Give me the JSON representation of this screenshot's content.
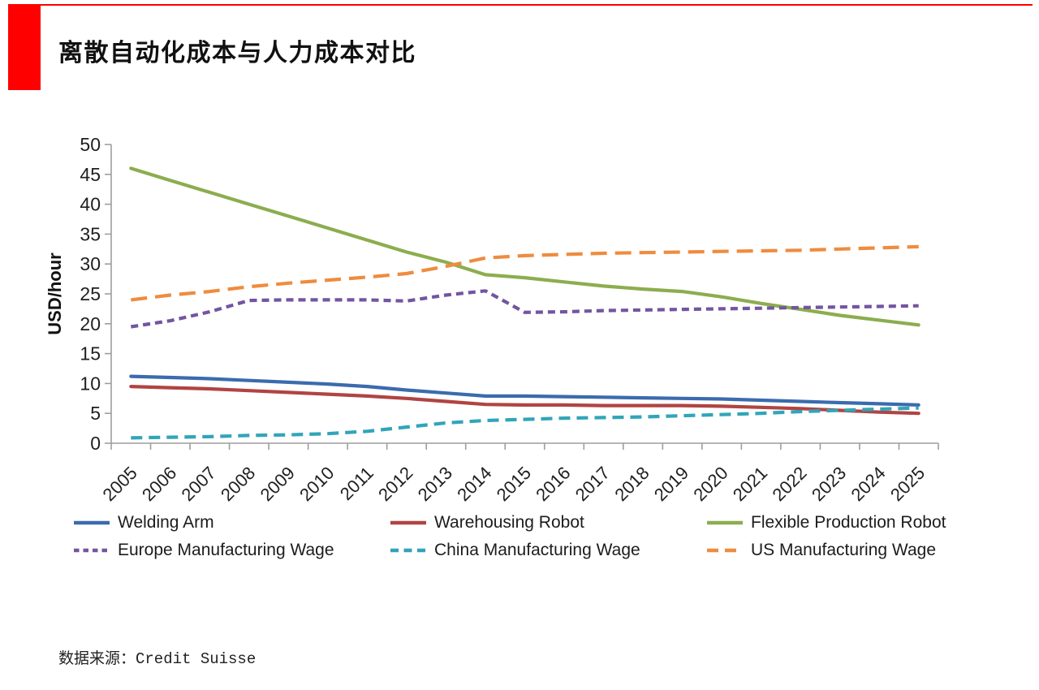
{
  "header": {
    "title": "离散自动化成本与人力成本对比",
    "accent_color": "#FE0000"
  },
  "chart_data": {
    "type": "line",
    "title": "离散自动化成本与人力成本对比",
    "xlabel": "",
    "ylabel": "USD/hour",
    "ylim": [
      0,
      50
    ],
    "ytick_step": 5,
    "grid": false,
    "legend_position": "bottom",
    "axis_color": "#9e9e9e",
    "categories": [
      "2005",
      "2006",
      "2007",
      "2008",
      "2009",
      "2010",
      "2011",
      "2012",
      "2013",
      "2014",
      "2015",
      "2016",
      "2017",
      "2018",
      "2019",
      "2020",
      "2021",
      "2022",
      "2023",
      "2024",
      "2025"
    ],
    "series": [
      {
        "name": "Welding Arm",
        "color": "#3B6BAE",
        "dash": "solid",
        "values": [
          11.2,
          11.0,
          10.8,
          10.5,
          10.2,
          9.9,
          9.5,
          8.9,
          8.4,
          7.9,
          7.9,
          7.8,
          7.7,
          7.6,
          7.5,
          7.4,
          7.2,
          7.0,
          6.8,
          6.6,
          6.4
        ]
      },
      {
        "name": "Warehousing Robot",
        "color": "#B04442",
        "dash": "solid",
        "values": [
          9.5,
          9.3,
          9.1,
          8.8,
          8.5,
          8.2,
          7.9,
          7.5,
          7.0,
          6.5,
          6.4,
          6.4,
          6.3,
          6.3,
          6.3,
          6.2,
          6.0,
          5.8,
          5.5,
          5.2,
          5.0
        ]
      },
      {
        "name": "Flexible Production Robot",
        "color": "#8CAD4E",
        "dash": "solid",
        "values": [
          46.0,
          44.0,
          42.0,
          40.0,
          38.0,
          36.0,
          34.0,
          32.0,
          30.3,
          28.2,
          27.7,
          27.0,
          26.3,
          25.8,
          25.4,
          24.5,
          23.4,
          22.4,
          21.4,
          20.6,
          19.8
        ]
      },
      {
        "name": "Europe Manufacturing Wage",
        "color": "#7355A0",
        "dash": "short-dash",
        "values": [
          19.5,
          20.5,
          22.0,
          23.9,
          24.0,
          24.0,
          24.0,
          23.8,
          24.8,
          25.5,
          21.9,
          22.0,
          22.2,
          22.3,
          22.4,
          22.5,
          22.6,
          22.7,
          22.8,
          22.9,
          23.0
        ]
      },
      {
        "name": "China Manufacturing Wage",
        "color": "#31A5B8",
        "dash": "dash",
        "values": [
          0.9,
          1.0,
          1.1,
          1.3,
          1.4,
          1.6,
          2.0,
          2.7,
          3.4,
          3.8,
          4.0,
          4.2,
          4.3,
          4.4,
          4.6,
          4.8,
          5.0,
          5.3,
          5.5,
          5.7,
          5.9
        ]
      },
      {
        "name": "US Manufacturing Wage",
        "color": "#EE8C3F",
        "dash": "long-dash",
        "values": [
          24.0,
          24.8,
          25.4,
          26.2,
          26.8,
          27.3,
          27.8,
          28.4,
          29.6,
          31.0,
          31.4,
          31.6,
          31.8,
          31.9,
          32.0,
          32.1,
          32.2,
          32.3,
          32.5,
          32.7,
          32.9
        ]
      }
    ]
  },
  "footer": {
    "source": "数据来源：Credit Suisse"
  }
}
